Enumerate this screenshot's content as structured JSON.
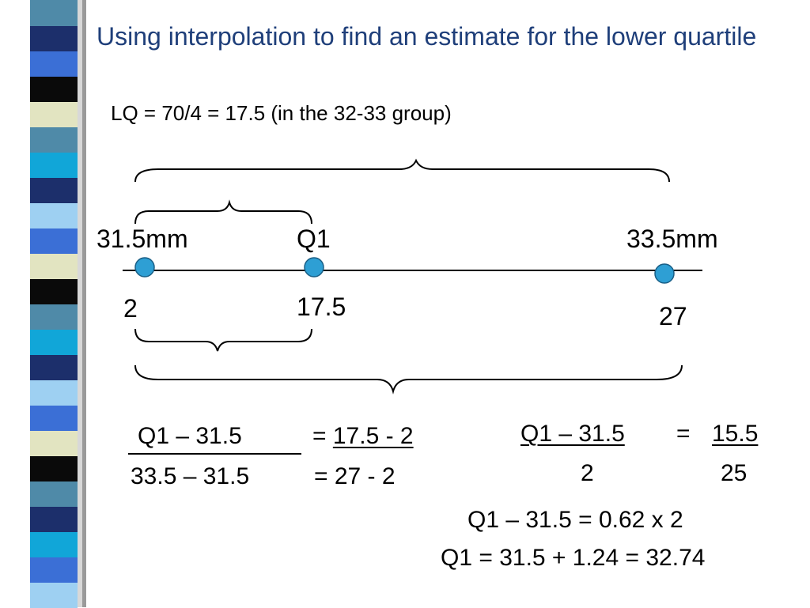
{
  "slide": {
    "title": "Using interpolation to find an estimate for the lower quartile",
    "subtitle": "LQ = 70/4 = 17.5 (in the 32-33 group)"
  },
  "number_line": {
    "left_label": "31.5mm",
    "mid_label": "Q1",
    "right_label": "33.5mm",
    "left_value": "2",
    "mid_value": "17.5",
    "right_value": "27"
  },
  "equations": {
    "left": {
      "numerator": "Q1 – 31.5",
      "denominator": "33.5 – 31.5",
      "rhs_numerator": "= 17.5 - 2",
      "rhs_denominator": "= 27 - 2"
    },
    "right": {
      "numerator": "Q1 – 31.5",
      "equals": "=",
      "rhs_numerator": "15.5",
      "denominator": "2",
      "rhs_denominator": "25"
    },
    "step1": "Q1 – 31.5  = 0.62 x 2",
    "step2": "Q1 = 31.5 + 1.24 = 32.74"
  },
  "colors": {
    "title": "#1f3f7a",
    "point_fill": "#2e9fd4",
    "point_stroke": "#1a5f86",
    "stripe": [
      "#4f8aa8",
      "#1c2f6b",
      "#3b6fd6",
      "#0a0a0a",
      "#e2e4c1",
      "#4f8aa8",
      "#11a6d8",
      "#1c2f6b",
      "#9ed0f2",
      "#3b6fd6",
      "#e2e4c1",
      "#0a0a0a",
      "#4f8aa8",
      "#11a6d8",
      "#1c2f6b",
      "#9ed0f2",
      "#3b6fd6",
      "#e2e4c1",
      "#0a0a0a",
      "#4f8aa8",
      "#1c2f6b",
      "#11a6d8",
      "#3b6fd6",
      "#9ed0f2"
    ]
  }
}
